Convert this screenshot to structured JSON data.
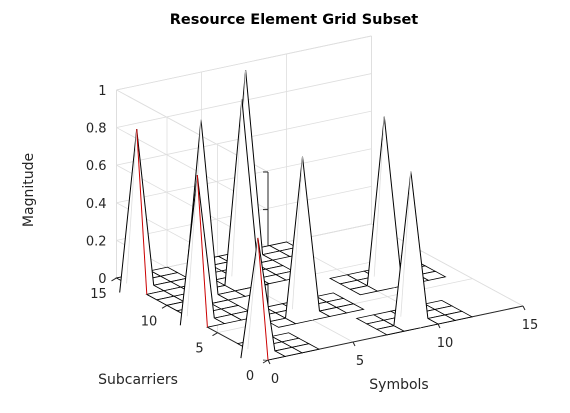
{
  "chart_data": {
    "type": "surface-3d",
    "title": "Resource Element Grid Subset",
    "xlabel": "Symbols",
    "ylabel": "Subcarriers",
    "zlabel": "Magnitude",
    "xlim": [
      0,
      15
    ],
    "ylim": [
      0,
      15
    ],
    "zlim": [
      0,
      1
    ],
    "xticks": [
      "0",
      "5",
      "10",
      "15"
    ],
    "yticks": [
      "0",
      "5",
      "10",
      "15"
    ],
    "zticks": [
      "0",
      "0.2",
      "0.4",
      "0.6",
      "0.8",
      "1"
    ],
    "grid": true,
    "box": true,
    "peaks": [
      {
        "symbol": 0,
        "subcarrier": 1,
        "magnitude": 0.62
      },
      {
        "symbol": 0,
        "subcarrier": 7,
        "magnitude": 0.78
      },
      {
        "symbol": 0,
        "subcarrier": 13,
        "magnitude": 0.85
      },
      {
        "symbol": 2,
        "subcarrier": 10,
        "magnitude": 0.95
      },
      {
        "symbol": 5,
        "subcarrier": 5,
        "magnitude": 0.84
      },
      {
        "symbol": 5,
        "subcarrier": 11,
        "magnitude": 0.97
      },
      {
        "symbol": 7,
        "subcarrier": 14,
        "magnitude": 1.0
      },
      {
        "symbol": 9,
        "subcarrier": 1,
        "magnitude": 0.8
      },
      {
        "symbol": 11,
        "subcarrier": 7,
        "magnitude": 0.88
      }
    ],
    "colors": {
      "edge": "#000000",
      "surface": "#ffffff",
      "axis": "#262626",
      "grid": "#dedede",
      "highlight": "#cc0000"
    }
  }
}
